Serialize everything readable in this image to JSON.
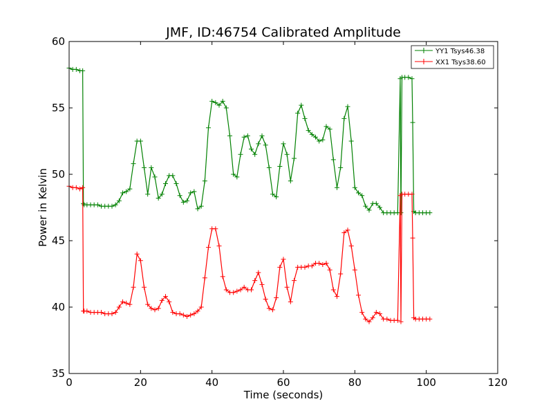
{
  "chart_data": {
    "type": "line",
    "title": "JMF, ID:46754 Calibrated Amplitude",
    "xlabel": "Time (seconds)",
    "ylabel": "Power in Kelvin",
    "xlim": [
      0,
      120
    ],
    "ylim": [
      35,
      60
    ],
    "xticks": [
      0,
      20,
      40,
      60,
      80,
      100,
      120
    ],
    "yticks": [
      35,
      40,
      45,
      50,
      55,
      60
    ],
    "grid": false,
    "legend_position": "top-right",
    "marker": "+",
    "series": [
      {
        "name": "YY1 Tsys46.38",
        "color": "#008000",
        "x": [
          0,
          1,
          2,
          3,
          3.8,
          4.0,
          4.2,
          5,
          6,
          7,
          8,
          9,
          10,
          11,
          12,
          13,
          14,
          15,
          16,
          17,
          18,
          19,
          20,
          21,
          22,
          23,
          24,
          25,
          26,
          27,
          28,
          29,
          30,
          31,
          32,
          33,
          34,
          35,
          36,
          37,
          38,
          39,
          40,
          41,
          42,
          43,
          44,
          45,
          46,
          47,
          48,
          49,
          50,
          51,
          52,
          53,
          54,
          55,
          56,
          57,
          58,
          59,
          60,
          61,
          62,
          63,
          64,
          65,
          66,
          67,
          68,
          69,
          70,
          71,
          72,
          73,
          74,
          75,
          76,
          77,
          78,
          79,
          80,
          81,
          82,
          83,
          84,
          85,
          86,
          87,
          88,
          89,
          90,
          91,
          92,
          92.7,
          92.9,
          93.2,
          94,
          95,
          96,
          96.2,
          96.5,
          97,
          98,
          99,
          100,
          101
        ],
        "y": [
          58.0,
          57.9,
          57.9,
          57.8,
          57.8,
          47.8,
          47.7,
          47.7,
          47.7,
          47.7,
          47.7,
          47.6,
          47.6,
          47.6,
          47.6,
          47.7,
          48.0,
          48.6,
          48.7,
          48.9,
          50.8,
          52.5,
          52.5,
          50.5,
          48.5,
          50.5,
          49.8,
          48.2,
          48.5,
          49.3,
          49.9,
          49.9,
          49.3,
          48.4,
          47.9,
          48.0,
          48.6,
          48.7,
          47.4,
          47.6,
          49.5,
          53.5,
          55.5,
          55.4,
          55.2,
          55.5,
          55.0,
          52.9,
          50.0,
          49.8,
          51.5,
          52.8,
          52.9,
          51.9,
          51.5,
          52.3,
          52.9,
          52.2,
          50.5,
          48.5,
          48.3,
          50.6,
          52.3,
          51.5,
          49.5,
          51.2,
          54.6,
          55.2,
          54.2,
          53.3,
          53.0,
          52.8,
          52.5,
          52.6,
          53.6,
          53.4,
          51.1,
          49.0,
          50.5,
          54.2,
          55.1,
          52.5,
          49.0,
          48.6,
          48.4,
          47.6,
          47.3,
          47.8,
          47.8,
          47.5,
          47.1,
          47.1,
          47.1,
          47.1,
          47.1,
          57.2,
          47.1,
          57.3,
          57.3,
          57.3,
          57.2,
          53.9,
          47.2,
          47.1,
          47.1,
          47.1,
          47.1,
          47.1
        ]
      },
      {
        "name": "XX1 Tsys38.60",
        "color": "#ff0000",
        "x": [
          0,
          1,
          2,
          3,
          3.8,
          4.0,
          4.2,
          5,
          6,
          7,
          8,
          9,
          10,
          11,
          12,
          13,
          14,
          15,
          16,
          17,
          18,
          19,
          20,
          21,
          22,
          23,
          24,
          25,
          26,
          27,
          28,
          29,
          30,
          31,
          32,
          33,
          34,
          35,
          36,
          37,
          38,
          39,
          40,
          41,
          42,
          43,
          44,
          45,
          46,
          47,
          48,
          49,
          50,
          51,
          52,
          53,
          54,
          55,
          56,
          57,
          58,
          59,
          60,
          61,
          62,
          63,
          64,
          65,
          66,
          67,
          68,
          69,
          70,
          71,
          72,
          73,
          74,
          75,
          76,
          77,
          78,
          79,
          80,
          81,
          82,
          83,
          84,
          85,
          86,
          87,
          88,
          89,
          90,
          91,
          92,
          92.7,
          92.9,
          93.2,
          94,
          95,
          96,
          96.2,
          96.5,
          97,
          98,
          99,
          100,
          101
        ],
        "y": [
          49.1,
          49.0,
          49.0,
          48.9,
          49.0,
          39.7,
          39.7,
          39.7,
          39.6,
          39.6,
          39.6,
          39.6,
          39.5,
          39.5,
          39.5,
          39.6,
          40.0,
          40.4,
          40.3,
          40.2,
          41.5,
          44.0,
          43.5,
          41.5,
          40.2,
          39.9,
          39.8,
          39.9,
          40.5,
          40.8,
          40.4,
          39.6,
          39.5,
          39.5,
          39.4,
          39.3,
          39.4,
          39.5,
          39.7,
          40.0,
          42.2,
          44.5,
          45.9,
          45.9,
          44.6,
          42.3,
          41.3,
          41.1,
          41.1,
          41.2,
          41.3,
          41.5,
          41.3,
          41.3,
          42.0,
          42.6,
          41.7,
          40.6,
          39.9,
          39.8,
          40.7,
          43.0,
          43.6,
          41.5,
          40.4,
          42.0,
          43.0,
          43.0,
          43.0,
          43.1,
          43.1,
          43.3,
          43.3,
          43.2,
          43.3,
          42.8,
          41.3,
          40.8,
          42.5,
          45.6,
          45.8,
          44.6,
          42.8,
          40.9,
          39.6,
          39.1,
          38.9,
          39.2,
          39.6,
          39.5,
          39.1,
          39.1,
          39.0,
          39.0,
          39.0,
          48.4,
          38.9,
          48.5,
          48.5,
          48.5,
          48.5,
          45.2,
          39.2,
          39.1,
          39.1,
          39.1,
          39.1,
          39.1
        ]
      }
    ]
  }
}
